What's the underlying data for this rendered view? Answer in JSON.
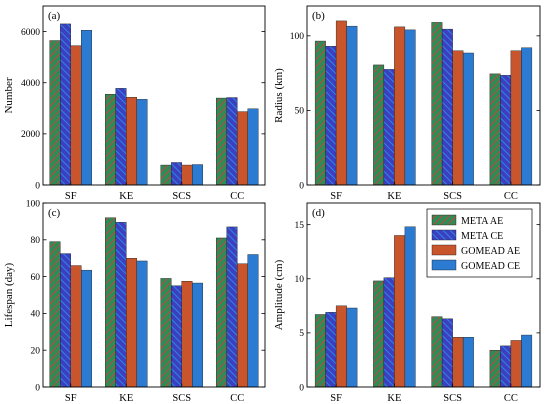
{
  "legend": [
    "META AE",
    "META CE",
    "GOMEAD AE",
    "GOMEAD CE"
  ],
  "colors": {
    "meta_ae": "#2E8B57",
    "meta_ae_hatch": "#E03A2F",
    "meta_ce": "#3C3FC4",
    "meta_ce_hatch": "#2A9AD8",
    "gomead_ae": "#C8552C",
    "gomead_ce": "#2B7BD3"
  },
  "chart_data": [
    {
      "type": "bar",
      "panel_label": "(a)",
      "ylabel": "Number",
      "xlabel": "",
      "categories": [
        "SF",
        "KE",
        "SCS",
        "CC"
      ],
      "ylim": [
        0,
        7000
      ],
      "yticks": [
        0,
        2000,
        4000,
        6000
      ],
      "series": [
        {
          "name": "META AE",
          "values": [
            5650,
            3550,
            780,
            3400
          ]
        },
        {
          "name": "META CE",
          "values": [
            6300,
            3780,
            880,
            3420
          ]
        },
        {
          "name": "GOMEAD AE",
          "values": [
            5450,
            3430,
            780,
            2870
          ]
        },
        {
          "name": "GOMEAD CE",
          "values": [
            6050,
            3350,
            800,
            2980
          ]
        }
      ]
    },
    {
      "type": "bar",
      "panel_label": "(b)",
      "ylabel": "Radius (km)",
      "xlabel": "",
      "categories": [
        "SF",
        "KE",
        "SCS",
        "CC"
      ],
      "ylim": [
        0,
        120
      ],
      "yticks": [
        0,
        50,
        100
      ],
      "series": [
        {
          "name": "META AE",
          "values": [
            96.5,
            80.5,
            109,
            74.5
          ]
        },
        {
          "name": "META CE",
          "values": [
            93,
            77.5,
            104.5,
            73.5
          ]
        },
        {
          "name": "GOMEAD AE",
          "values": [
            110,
            106,
            90,
            90
          ]
        },
        {
          "name": "GOMEAD CE",
          "values": [
            106.5,
            104,
            88.5,
            92
          ]
        }
      ]
    },
    {
      "type": "bar",
      "panel_label": "(c)",
      "ylabel": "Lifespan (day)",
      "xlabel": "",
      "categories": [
        "SF",
        "KE",
        "SCS",
        "CC"
      ],
      "ylim": [
        0,
        100
      ],
      "yticks": [
        0,
        20,
        40,
        60,
        80,
        100
      ],
      "series": [
        {
          "name": "META AE",
          "values": [
            79,
            92,
            59,
            81
          ]
        },
        {
          "name": "META CE",
          "values": [
            72.5,
            89.5,
            55,
            87
          ]
        },
        {
          "name": "GOMEAD AE",
          "values": [
            66,
            70,
            57.5,
            67
          ]
        },
        {
          "name": "GOMEAD CE",
          "values": [
            63.5,
            68.5,
            56.5,
            72
          ]
        }
      ]
    },
    {
      "type": "bar",
      "panel_label": "(d)",
      "ylabel": "Amplitude (cm)",
      "xlabel": "",
      "categories": [
        "SF",
        "KE",
        "SCS",
        "CC"
      ],
      "ylim": [
        0,
        17
      ],
      "yticks": [
        0,
        5,
        10,
        15
      ],
      "series": [
        {
          "name": "META AE",
          "values": [
            6.7,
            9.8,
            6.5,
            3.4
          ]
        },
        {
          "name": "META CE",
          "values": [
            6.9,
            10.1,
            6.3,
            3.8
          ]
        },
        {
          "name": "GOMEAD AE",
          "values": [
            7.5,
            14,
            4.6,
            4.3
          ]
        },
        {
          "name": "GOMEAD CE",
          "values": [
            7.3,
            14.8,
            4.6,
            4.8
          ]
        }
      ]
    }
  ]
}
